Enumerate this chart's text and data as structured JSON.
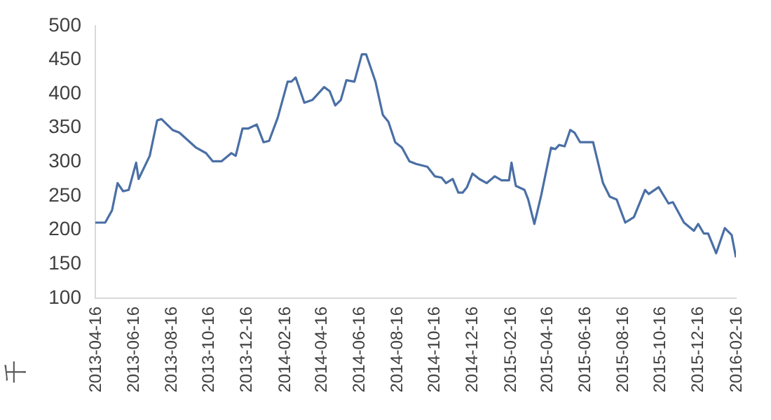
{
  "chart_data": {
    "type": "line",
    "ylabel": "千",
    "x": [
      "2013-04-16",
      "2013-05-02",
      "2013-05-13",
      "2013-05-22",
      "2013-05-31",
      "2013-06-09",
      "2013-06-21",
      "2013-06-25",
      "2013-07-13",
      "2013-07-25",
      "2013-08-01",
      "2013-08-19",
      "2013-08-30",
      "2013-09-26",
      "2013-10-12",
      "2013-10-23",
      "2013-11-06",
      "2013-11-22",
      "2013-11-29",
      "2013-12-10",
      "2013-12-19",
      "2014-01-02",
      "2014-01-13",
      "2014-01-22",
      "2014-02-05",
      "2014-02-21",
      "2014-02-27",
      "2014-03-06",
      "2014-03-20",
      "2014-04-02",
      "2014-04-21",
      "2014-04-30",
      "2014-05-09",
      "2014-05-18",
      "2014-05-27",
      "2014-06-09",
      "2014-06-21",
      "2014-06-28",
      "2014-07-13",
      "2014-07-25",
      "2014-08-03",
      "2014-08-14",
      "2014-08-25",
      "2014-09-06",
      "2014-09-17",
      "2014-10-05",
      "2014-10-17",
      "2014-10-28",
      "2014-11-04",
      "2014-11-15",
      "2014-11-24",
      "2014-12-01",
      "2014-12-08",
      "2014-12-17",
      "2014-12-28",
      "2015-01-09",
      "2015-01-22",
      "2015-02-02",
      "2015-02-14",
      "2015-02-18",
      "2015-02-25",
      "2015-03-11",
      "2015-03-17",
      "2015-03-27",
      "2015-04-07",
      "2015-04-23",
      "2015-04-30",
      "2015-05-06",
      "2015-05-15",
      "2015-05-24",
      "2015-05-31",
      "2015-06-09",
      "2015-06-30",
      "2015-07-16",
      "2015-07-27",
      "2015-08-07",
      "2015-08-21",
      "2015-09-04",
      "2015-09-22",
      "2015-09-28",
      "2015-10-14",
      "2015-10-30",
      "2015-11-06",
      "2015-11-24",
      "2015-12-10",
      "2015-12-17",
      "2015-12-26",
      "2016-01-02",
      "2016-01-15",
      "2016-01-29",
      "2016-02-09",
      "2016-02-16"
    ],
    "series": [
      {
        "color": "#4a6fa5",
        "values": [
          211,
          211,
          229,
          269,
          257,
          259,
          299,
          275,
          309,
          361,
          363,
          347,
          343,
          321,
          313,
          301,
          301,
          313,
          309,
          349,
          349,
          355,
          329,
          331,
          365,
          418,
          418,
          424,
          387,
          391,
          410,
          404,
          383,
          391,
          420,
          418,
          458,
          458,
          418,
          369,
          359,
          329,
          321,
          301,
          297,
          293,
          279,
          277,
          269,
          275,
          255,
          255,
          263,
          283,
          275,
          269,
          279,
          273,
          273,
          299,
          265,
          259,
          245,
          209,
          251,
          321,
          319,
          325,
          323,
          347,
          343,
          329,
          329,
          269,
          249,
          245,
          211,
          219,
          259,
          253,
          263,
          239,
          241,
          211,
          199,
          209,
          195,
          195,
          166,
          203,
          193,
          160
        ]
      }
    ],
    "xlim": [
      "2013-04-16",
      "2016-02-16"
    ],
    "xticks": [
      "2013-04-16",
      "2013-06-16",
      "2013-08-16",
      "2013-10-16",
      "2013-12-16",
      "2014-02-16",
      "2014-04-16",
      "2014-06-16",
      "2014-08-16",
      "2014-10-16",
      "2014-12-16",
      "2015-02-16",
      "2015-04-16",
      "2015-06-16",
      "2015-08-16",
      "2015-10-16",
      "2015-12-16",
      "2016-02-16"
    ],
    "ylim": [
      100,
      500
    ],
    "yticks": [
      100,
      150,
      200,
      250,
      300,
      350,
      400,
      450,
      500
    ],
    "grid": false,
    "legend": false,
    "marker": "none",
    "line_style": "solid"
  }
}
